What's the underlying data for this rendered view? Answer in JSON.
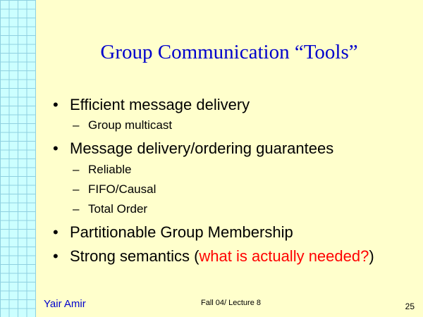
{
  "slide": {
    "title": "Group Communication “Tools”",
    "bullet_glyph": "•",
    "dash_glyph": "–",
    "bullets": [
      {
        "text": "Efficient message delivery"
      },
      {
        "text": "Message delivery/ordering guarantees"
      },
      {
        "text": "Partitionable Group Membership"
      },
      {
        "text_before": "Strong semantics (",
        "highlight": "what is actually needed?",
        "text_after": ")"
      }
    ],
    "sub_bullets": {
      "delivery": [
        "Group multicast"
      ],
      "guarantees": [
        "Reliable",
        "FIFO/Causal",
        "Total Order"
      ]
    },
    "highlight_color": "#ff0000",
    "title_color": "#0000cc"
  },
  "footer": {
    "author": "Yair Amir",
    "course": "Fall 04/ Lecture 8",
    "page_number": "25"
  }
}
